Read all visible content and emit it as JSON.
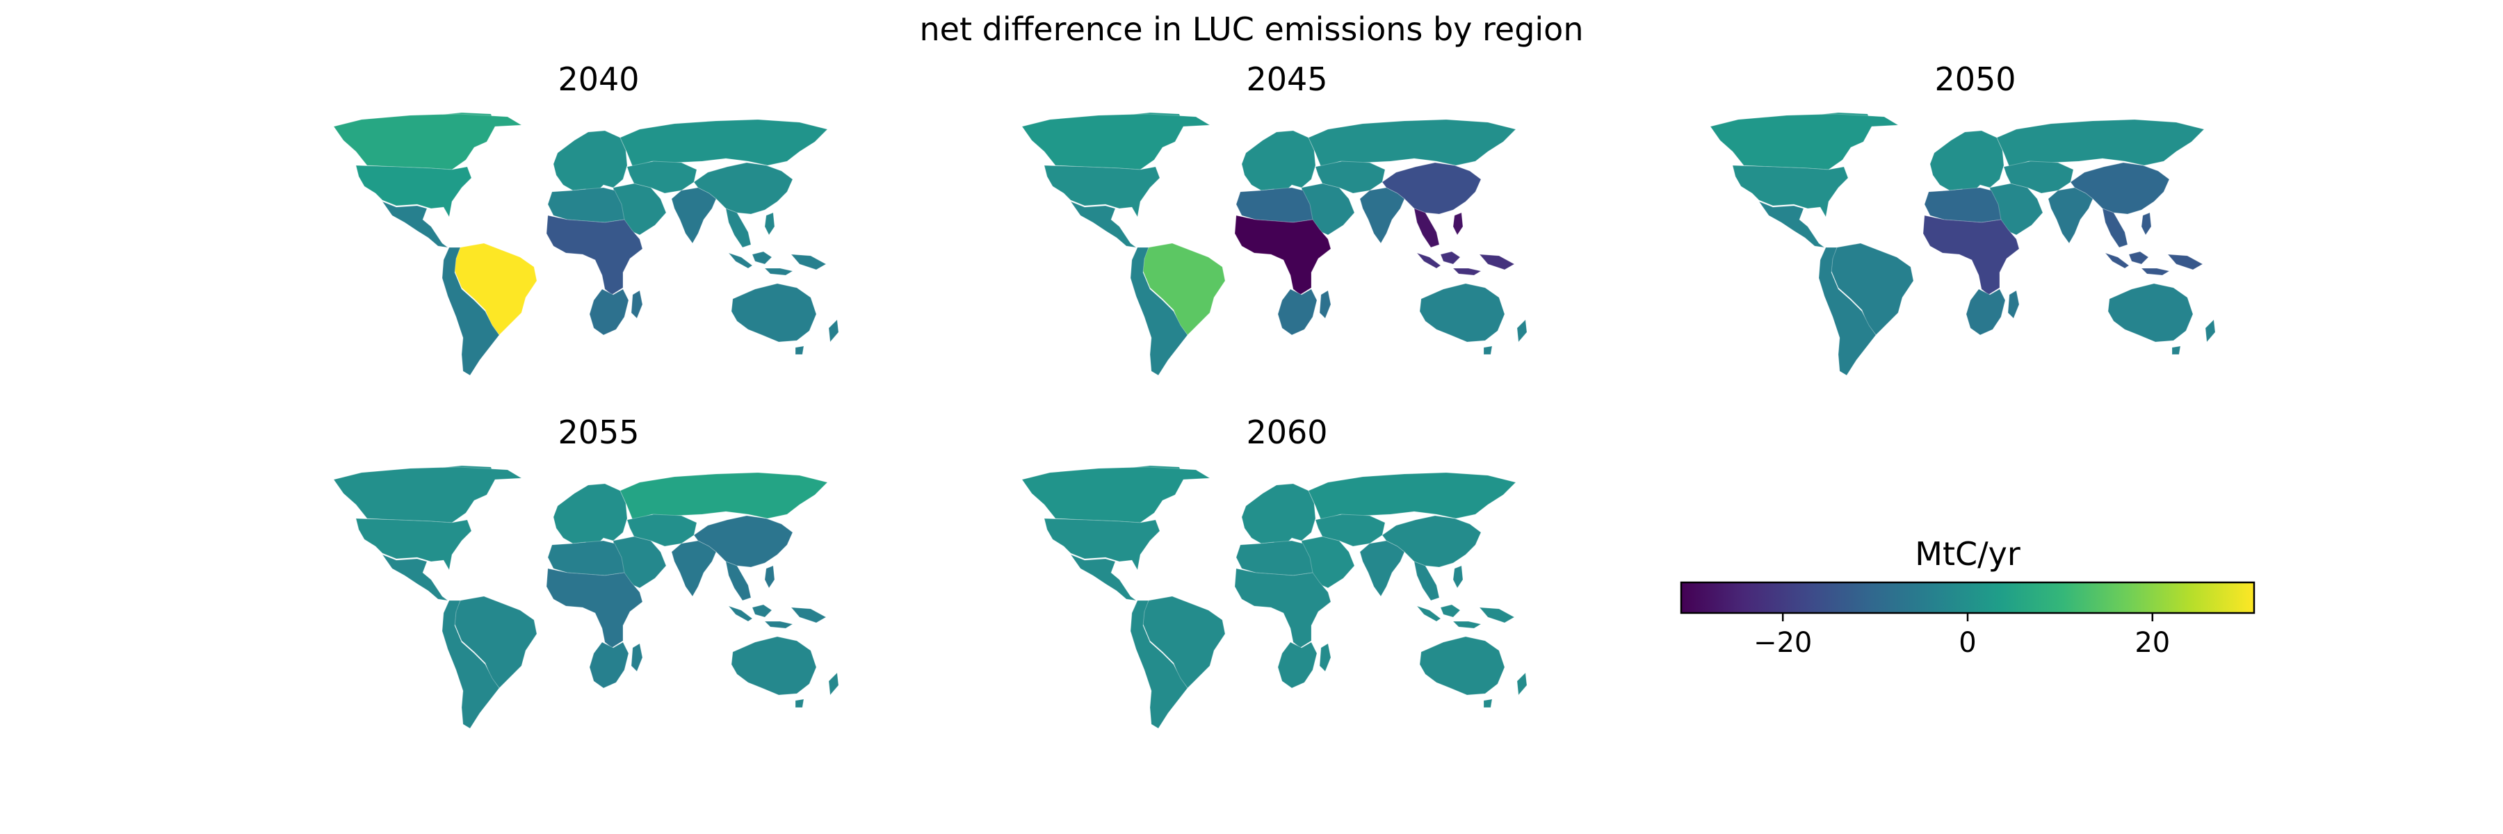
{
  "figure": {
    "title": "net difference in LUC emissions by region"
  },
  "colormap": {
    "name": "viridis",
    "stops": [
      "#440154",
      "#482878",
      "#3e4989",
      "#31688e",
      "#26828e",
      "#1f9e89",
      "#35b779",
      "#6ece58",
      "#b5de2b",
      "#fde725"
    ],
    "min": -31,
    "max": 31
  },
  "colorbar": {
    "label": "MtC/yr",
    "ticks": [
      {
        "value": -20,
        "label": "−20"
      },
      {
        "value": 0,
        "label": "0"
      },
      {
        "value": 20,
        "label": "20"
      }
    ]
  },
  "regions": [
    "Canada",
    "USA",
    "Central America",
    "Brazil",
    "South America",
    "Europe",
    "Russia",
    "Middle East",
    "Central Asia",
    "North Africa",
    "Sub-Saharan Africa",
    "Southern Africa",
    "India",
    "China",
    "Southeast Asia",
    "Indonesia",
    "Oceania"
  ],
  "panels": [
    {
      "title": "2040",
      "values": {
        "Canada": 6,
        "USA": 3,
        "Central America": -4,
        "Brazil": 31,
        "South America": -5,
        "Europe": 0,
        "Russia": 1,
        "Middle East": -1,
        "Central Asia": 0,
        "North Africa": -3,
        "Sub-Saharan Africa": -14,
        "Southern Africa": -8,
        "India": -6,
        "China": -1,
        "Southeast Asia": -2,
        "Indonesia": -4,
        "Oceania": -4
      }
    },
    {
      "title": "2045",
      "values": {
        "Canada": 2,
        "USA": 0,
        "Central America": -2,
        "Brazil": 15,
        "South America": -3,
        "Europe": 0,
        "Russia": 0,
        "Middle East": -2,
        "Central Asia": -1,
        "North Africa": -10,
        "Sub-Saharan Africa": -31,
        "Southern Africa": -8,
        "India": -8,
        "China": -16,
        "Southeast Asia": -28,
        "Indonesia": -22,
        "Oceania": -3
      }
    },
    {
      "title": "2050",
      "values": {
        "Canada": 2,
        "USA": 0,
        "Central America": -3,
        "Brazil": -4,
        "South America": -4,
        "Europe": 0,
        "Russia": 0,
        "Middle East": -2,
        "Central Asia": -1,
        "North Africa": -10,
        "Sub-Saharan Africa": -18,
        "Southern Africa": -6,
        "India": -6,
        "China": -10,
        "Southeast Asia": -13,
        "Indonesia": -14,
        "Oceania": -3
      }
    },
    {
      "title": "2055",
      "values": {
        "Canada": 0,
        "USA": 0,
        "Central America": -2,
        "Brazil": -2,
        "South America": -2,
        "Europe": 0,
        "Russia": 5,
        "Middle East": -2,
        "Central Asia": 0,
        "North Africa": -4,
        "Sub-Saharan Africa": -7,
        "Southern Africa": -4,
        "India": -6,
        "China": -7,
        "Southeast Asia": -6,
        "Indonesia": -4,
        "Oceania": -2
      }
    },
    {
      "title": "2060",
      "values": {
        "Canada": 1,
        "USA": 0,
        "Central America": -1,
        "Brazil": -1,
        "South America": -1,
        "Europe": 0,
        "Russia": 1,
        "Middle East": 0,
        "Central Asia": 0,
        "North Africa": -1,
        "Sub-Saharan Africa": -1,
        "Southern Africa": -1,
        "India": -2,
        "China": -1,
        "Southeast Asia": -2,
        "Indonesia": -1,
        "Oceania": -1
      }
    }
  ]
}
